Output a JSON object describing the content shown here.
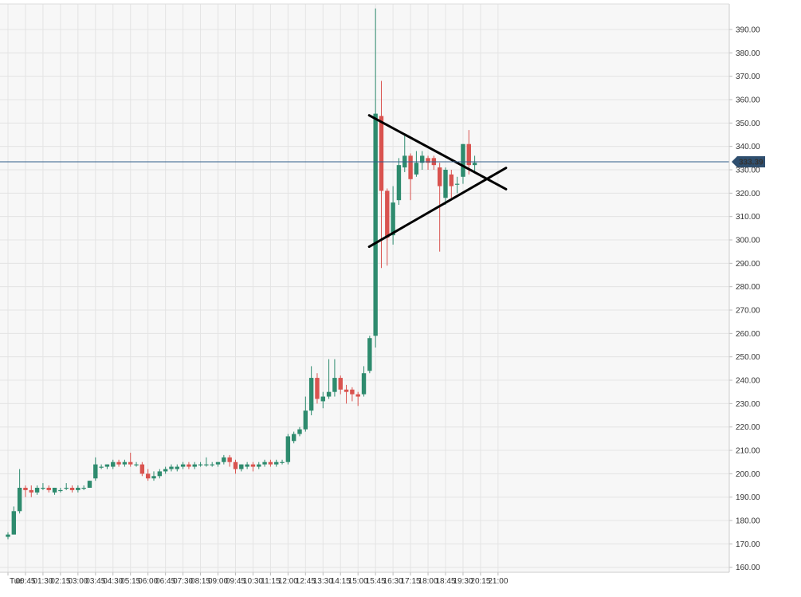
{
  "chart_data": {
    "type": "candlestick",
    "title": "",
    "xlabel": "",
    "ylabel": "",
    "ylim": [
      160,
      400
    ],
    "y_ticks": [
      160,
      170,
      180,
      190,
      200,
      210,
      220,
      230,
      240,
      250,
      260,
      270,
      280,
      290,
      300,
      310,
      320,
      330,
      340,
      350,
      360,
      370,
      380,
      390
    ],
    "y_tick_labels": [
      "160.00",
      "170.00",
      "180.00",
      "190.00",
      "200.00",
      "210.00",
      "220.00",
      "230.00",
      "240.00",
      "250.00",
      "260.00",
      "270.00",
      "280.00",
      "290.00",
      "300.00",
      "310.00",
      "320.00",
      "330.00",
      "340.00",
      "350.00",
      "360.00",
      "370.00",
      "380.00",
      "390.00"
    ],
    "x_tick_labels": [
      "Tue",
      "00:45",
      "01:30",
      "02:15",
      "03:00",
      "03:45",
      "04:30",
      "05:15",
      "06:00",
      "06:45",
      "07:30",
      "08:15",
      "09:00",
      "09:45",
      "10:30",
      "11:15",
      "12:00",
      "12:45",
      "13:30",
      "14:15",
      "15:00",
      "15:45",
      "16:30",
      "17:15",
      "18:00",
      "18:45",
      "19:30",
      "20:15",
      "21:00"
    ],
    "bar_interval_minutes": 15,
    "grid": true,
    "colors": {
      "up": "#2e8b6e",
      "down": "#d9534f",
      "price_line": "#2f5d8a",
      "price_label_bg": "#2f4f6f",
      "pattern_lines": "#000000"
    },
    "last_price": {
      "value": 333.39,
      "label": "333.39"
    },
    "candles": [
      {
        "t": "00:00",
        "o": 173,
        "h": 175,
        "l": 172,
        "c": 174
      },
      {
        "t": "00:15",
        "o": 174,
        "h": 186,
        "l": 174,
        "c": 184
      },
      {
        "t": "00:30",
        "o": 184,
        "h": 202,
        "l": 183,
        "c": 194
      },
      {
        "t": "00:45",
        "o": 194,
        "h": 195,
        "l": 190,
        "c": 193
      },
      {
        "t": "01:00",
        "o": 193,
        "h": 195,
        "l": 190,
        "c": 192
      },
      {
        "t": "01:15",
        "o": 192,
        "h": 195,
        "l": 191,
        "c": 194
      },
      {
        "t": "01:30",
        "o": 194,
        "h": 196,
        "l": 193,
        "c": 194
      },
      {
        "t": "01:45",
        "o": 194,
        "h": 195,
        "l": 192,
        "c": 193
      },
      {
        "t": "02:00",
        "o": 192,
        "h": 194,
        "l": 191,
        "c": 194
      },
      {
        "t": "02:15",
        "o": 193,
        "h": 194,
        "l": 192,
        "c": 193
      },
      {
        "t": "02:30",
        "o": 194,
        "h": 196,
        "l": 193,
        "c": 194
      },
      {
        "t": "02:45",
        "o": 194,
        "h": 195,
        "l": 192,
        "c": 193
      },
      {
        "t": "03:00",
        "o": 193,
        "h": 195,
        "l": 192,
        "c": 194
      },
      {
        "t": "03:15",
        "o": 194,
        "h": 195,
        "l": 193,
        "c": 194
      },
      {
        "t": "03:30",
        "o": 194,
        "h": 197,
        "l": 194,
        "c": 197
      },
      {
        "t": "03:45",
        "o": 198,
        "h": 207,
        "l": 197,
        "c": 204
      },
      {
        "t": "04:00",
        "o": 203,
        "h": 204,
        "l": 202,
        "c": 203
      },
      {
        "t": "04:15",
        "o": 203,
        "h": 204,
        "l": 202,
        "c": 204
      },
      {
        "t": "04:30",
        "o": 203,
        "h": 206,
        "l": 202,
        "c": 205
      },
      {
        "t": "04:45",
        "o": 205,
        "h": 206,
        "l": 203,
        "c": 204
      },
      {
        "t": "05:00",
        "o": 204,
        "h": 206,
        "l": 203,
        "c": 205
      },
      {
        "t": "05:15",
        "o": 205,
        "h": 209,
        "l": 203,
        "c": 204
      },
      {
        "t": "05:30",
        "o": 204,
        "h": 205,
        "l": 203,
        "c": 204
      },
      {
        "t": "05:45",
        "o": 204,
        "h": 205,
        "l": 199,
        "c": 200
      },
      {
        "t": "06:00",
        "o": 200,
        "h": 202,
        "l": 197,
        "c": 198
      },
      {
        "t": "06:15",
        "o": 198,
        "h": 201,
        "l": 197,
        "c": 199
      },
      {
        "t": "06:30",
        "o": 199,
        "h": 202,
        "l": 198,
        "c": 201
      },
      {
        "t": "06:45",
        "o": 201,
        "h": 203,
        "l": 200,
        "c": 202
      },
      {
        "t": "07:00",
        "o": 202,
        "h": 204,
        "l": 201,
        "c": 203
      },
      {
        "t": "07:15",
        "o": 202,
        "h": 204,
        "l": 201,
        "c": 203
      },
      {
        "t": "07:30",
        "o": 203,
        "h": 205,
        "l": 202,
        "c": 204
      },
      {
        "t": "07:45",
        "o": 204,
        "h": 205,
        "l": 202,
        "c": 203
      },
      {
        "t": "08:00",
        "o": 203,
        "h": 205,
        "l": 202,
        "c": 204
      },
      {
        "t": "08:15",
        "o": 204,
        "h": 205,
        "l": 203,
        "c": 204
      },
      {
        "t": "08:30",
        "o": 204,
        "h": 207,
        "l": 203,
        "c": 204
      },
      {
        "t": "08:45",
        "o": 204,
        "h": 205,
        "l": 203,
        "c": 204
      },
      {
        "t": "09:00",
        "o": 204,
        "h": 205,
        "l": 203,
        "c": 205
      },
      {
        "t": "09:15",
        "o": 205,
        "h": 208,
        "l": 204,
        "c": 207
      },
      {
        "t": "09:30",
        "o": 207,
        "h": 208,
        "l": 203,
        "c": 205
      },
      {
        "t": "09:45",
        "o": 205,
        "h": 206,
        "l": 200,
        "c": 202
      },
      {
        "t": "10:00",
        "o": 202,
        "h": 204,
        "l": 201,
        "c": 204
      },
      {
        "t": "10:15",
        "o": 203,
        "h": 205,
        "l": 202,
        "c": 204
      },
      {
        "t": "10:30",
        "o": 204,
        "h": 205,
        "l": 201,
        "c": 203
      },
      {
        "t": "10:45",
        "o": 203,
        "h": 205,
        "l": 202,
        "c": 204
      },
      {
        "t": "11:00",
        "o": 204,
        "h": 206,
        "l": 203,
        "c": 205
      },
      {
        "t": "11:15",
        "o": 205,
        "h": 206,
        "l": 203,
        "c": 204
      },
      {
        "t": "11:30",
        "o": 204,
        "h": 206,
        "l": 203,
        "c": 205
      },
      {
        "t": "11:45",
        "o": 205,
        "h": 206,
        "l": 204,
        "c": 205
      },
      {
        "t": "12:00",
        "o": 205,
        "h": 217,
        "l": 204,
        "c": 216
      },
      {
        "t": "12:15",
        "o": 214,
        "h": 218,
        "l": 213,
        "c": 217
      },
      {
        "t": "12:30",
        "o": 217,
        "h": 220,
        "l": 216,
        "c": 219
      },
      {
        "t": "12:45",
        "o": 219,
        "h": 233,
        "l": 218,
        "c": 227
      },
      {
        "t": "13:00",
        "o": 227,
        "h": 246,
        "l": 225,
        "c": 241
      },
      {
        "t": "13:15",
        "o": 241,
        "h": 243,
        "l": 230,
        "c": 232
      },
      {
        "t": "13:30",
        "o": 231,
        "h": 235,
        "l": 228,
        "c": 233
      },
      {
        "t": "13:45",
        "o": 233,
        "h": 249,
        "l": 232,
        "c": 235
      },
      {
        "t": "14:00",
        "o": 235,
        "h": 249,
        "l": 233,
        "c": 241
      },
      {
        "t": "14:15",
        "o": 241,
        "h": 242,
        "l": 234,
        "c": 236
      },
      {
        "t": "14:30",
        "o": 236,
        "h": 238,
        "l": 230,
        "c": 235
      },
      {
        "t": "14:45",
        "o": 236,
        "h": 237,
        "l": 231,
        "c": 234
      },
      {
        "t": "15:00",
        "o": 234,
        "h": 235,
        "l": 229,
        "c": 233
      },
      {
        "t": "15:15",
        "o": 234,
        "h": 246,
        "l": 233,
        "c": 243
      },
      {
        "t": "15:30",
        "o": 244,
        "h": 259,
        "l": 243,
        "c": 258
      },
      {
        "t": "15:45",
        "o": 259,
        "h": 399,
        "l": 254,
        "c": 354
      },
      {
        "t": "16:00",
        "o": 353,
        "h": 368,
        "l": 288,
        "c": 321
      },
      {
        "t": "16:15",
        "o": 321,
        "h": 322,
        "l": 289,
        "c": 301
      },
      {
        "t": "16:30",
        "o": 302,
        "h": 323,
        "l": 298,
        "c": 316
      },
      {
        "t": "16:45",
        "o": 317,
        "h": 335,
        "l": 315,
        "c": 332
      },
      {
        "t": "17:00",
        "o": 331,
        "h": 345,
        "l": 329,
        "c": 336
      },
      {
        "t": "17:15",
        "o": 336,
        "h": 337,
        "l": 317,
        "c": 326
      },
      {
        "t": "17:30",
        "o": 328,
        "h": 338,
        "l": 327,
        "c": 333
      },
      {
        "t": "17:45",
        "o": 333,
        "h": 338,
        "l": 330,
        "c": 336
      },
      {
        "t": "18:00",
        "o": 335,
        "h": 336,
        "l": 330,
        "c": 333
      },
      {
        "t": "18:15",
        "o": 335,
        "h": 336,
        "l": 330,
        "c": 332
      },
      {
        "t": "18:30",
        "o": 331,
        "h": 333,
        "l": 295,
        "c": 323
      },
      {
        "t": "18:45",
        "o": 318,
        "h": 331,
        "l": 315,
        "c": 330
      },
      {
        "t": "19:00",
        "o": 328,
        "h": 330,
        "l": 318,
        "c": 323
      },
      {
        "t": "19:15",
        "o": 324,
        "h": 327,
        "l": 320,
        "c": 324
      },
      {
        "t": "19:30",
        "o": 327,
        "h": 341,
        "l": 324,
        "c": 341
      },
      {
        "t": "19:45",
        "o": 341,
        "h": 347,
        "l": 328,
        "c": 332
      },
      {
        "t": "20:00",
        "o": 332,
        "h": 336,
        "l": 329,
        "c": 333
      }
    ],
    "trendlines": [
      {
        "name": "upper",
        "from": {
          "t": "15:45",
          "y": 353.3
        },
        "to": {
          "t": "21:00",
          "y": 321.7
        }
      },
      {
        "name": "lower",
        "from": {
          "t": "15:45",
          "y": 297.1
        },
        "to": {
          "t": "21:00",
          "y": 330.8
        }
      }
    ]
  }
}
